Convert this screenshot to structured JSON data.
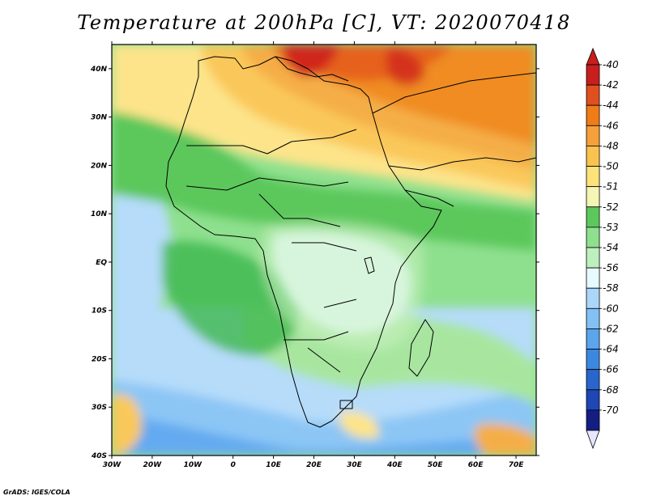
{
  "title": "Temperature at 200hPa [C], VT: 2020070418",
  "credit": "GrADS: IGES/COLA",
  "map": {
    "lon_range": [
      -30,
      75
    ],
    "lat_range": [
      -40,
      45
    ],
    "lon_ticks": [
      "30W",
      "20W",
      "10W",
      "0",
      "10E",
      "20E",
      "30E",
      "40E",
      "50E",
      "60E",
      "70E"
    ],
    "lon_tick_values": [
      -30,
      -20,
      -10,
      0,
      10,
      20,
      30,
      40,
      50,
      60,
      70
    ],
    "lat_ticks": [
      "40N",
      "30N",
      "20N",
      "10N",
      "EQ",
      "10S",
      "20S",
      "30S",
      "40S"
    ],
    "lat_tick_values": [
      40,
      30,
      20,
      10,
      0,
      -10,
      -20,
      -30,
      -40
    ]
  },
  "colorbar": {
    "labels": [
      "-40",
      "-42",
      "-44",
      "-46",
      "-48",
      "-50",
      "-51",
      "-52",
      "-53",
      "-54",
      "-56",
      "-58",
      "-60",
      "-62",
      "-64",
      "-66",
      "-68",
      "-70"
    ],
    "colors": [
      "#c81e1e",
      "#e0501e",
      "#f07c18",
      "#f5a03a",
      "#fac24e",
      "#fde27a",
      "#f5f5b4",
      "#5cc85c",
      "#8ee08e",
      "#bef0be",
      "#e6faff",
      "#aad6fa",
      "#82c0f5",
      "#5aa5ec",
      "#3c88e0",
      "#2866cc",
      "#1e46b4",
      "#141e82"
    ]
  },
  "field_colors": {
    "deep_red": "#d0281e",
    "orange_red": "#e6621e",
    "orange": "#f08c24",
    "light_orange": "#f5ae46",
    "yellow_orange": "#fac85a",
    "yellow": "#fde48a",
    "pale_yellow": "#f5f5b4",
    "green": "#3cb84c",
    "mid_green": "#6ed26e",
    "light_green": "#a8e6a0",
    "pale_green": "#c8f0c0",
    "very_pale": "#e8fbff",
    "light_blue": "#b6dcfa",
    "sky_blue": "#8cc6f5",
    "blue": "#64aaf0"
  }
}
